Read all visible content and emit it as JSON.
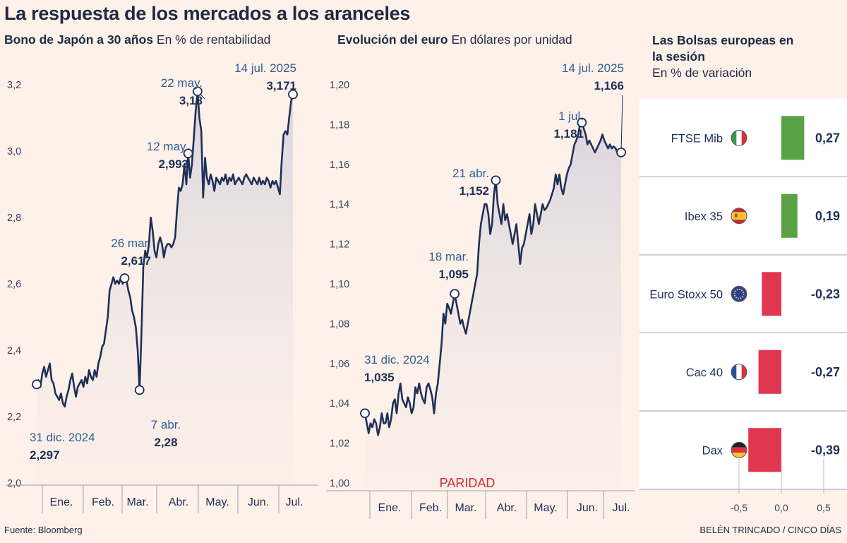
{
  "headline": "La respuesta de los mercados a los aranceles",
  "source": "Fuente: Bloomberg",
  "credit": "BELÉN TRINCADO / CINCO DÍAS",
  "colors": {
    "line": "#1f3057",
    "annotation_label": "#2f5f96",
    "positive": "#5aa246",
    "negative": "#e0364f",
    "paridad": "#d6293b",
    "background": "#fdf1e9",
    "axis_text": "#3a4560"
  },
  "chart_data": [
    {
      "type": "line",
      "title": "Bono de Japón a 30 años",
      "subtitle": "En % de rentabilidad",
      "ylim": [
        2.0,
        3.2
      ],
      "yticks": [
        "2,0",
        "2,2",
        "2,4",
        "2,6",
        "2,8",
        "3,0",
        "3,2"
      ],
      "ytick_values": [
        2.0,
        2.2,
        2.4,
        2.6,
        2.8,
        3.0,
        3.2
      ],
      "xticks": [
        "Ene.",
        "Feb.",
        "Mar.",
        "Abr.",
        "May.",
        "Jun.",
        "Jul."
      ],
      "x_end_index": 137,
      "values": [
        2.297,
        2.31,
        2.29,
        2.33,
        2.35,
        2.32,
        2.34,
        2.36,
        2.31,
        2.3,
        2.27,
        2.26,
        2.25,
        2.27,
        2.24,
        2.23,
        2.26,
        2.28,
        2.31,
        2.33,
        2.29,
        2.26,
        2.29,
        2.3,
        2.31,
        2.29,
        2.32,
        2.3,
        2.34,
        2.32,
        2.31,
        2.34,
        2.32,
        2.36,
        2.38,
        2.41,
        2.42,
        2.46,
        2.5,
        2.58,
        2.6,
        2.62,
        2.6,
        2.61,
        2.6,
        2.62,
        2.6,
        2.617,
        2.61,
        2.58,
        2.56,
        2.52,
        2.5,
        2.47,
        2.4,
        2.28,
        2.45,
        2.65,
        2.7,
        2.68,
        2.72,
        2.8,
        2.76,
        2.7,
        2.68,
        2.72,
        2.74,
        2.72,
        2.68,
        2.71,
        2.72,
        2.72,
        2.71,
        2.72,
        2.74,
        2.82,
        2.89,
        2.88,
        2.9,
        2.96,
        2.9,
        2.993,
        2.92,
        2.96,
        3.04,
        3.12,
        3.18,
        3.1,
        3.06,
        2.86,
        2.98,
        2.92,
        2.9,
        2.93,
        2.91,
        2.88,
        2.92,
        2.91,
        2.9,
        2.92,
        2.91,
        2.93,
        2.9,
        2.92,
        2.91,
        2.93,
        2.9,
        2.91,
        2.92,
        2.91,
        2.9,
        2.92,
        2.93,
        2.92,
        2.91,
        2.9,
        2.92,
        2.91,
        2.9,
        2.92,
        2.9,
        2.91,
        2.9,
        2.92,
        2.91,
        2.89,
        2.91,
        2.9,
        2.91,
        2.89,
        2.87,
        2.97,
        3.05,
        3.06,
        3.05,
        3.1,
        3.15,
        3.171
      ],
      "annotations": [
        {
          "date": "31 dic. 2024",
          "value": "2,297",
          "index": 0
        },
        {
          "date": "26 mar.",
          "value": "2,617",
          "index": 47
        },
        {
          "date": "7 abr.",
          "value": "2,28",
          "index": 55
        },
        {
          "date": "12 may.",
          "value": "2,993",
          "index": 81
        },
        {
          "date": "22 may.",
          "value": "3,18",
          "index": 86
        },
        {
          "date": "14 jul. 2025",
          "value": "3,171",
          "index": 137
        }
      ]
    },
    {
      "type": "line",
      "title": "Evolución del euro",
      "subtitle": "En dólares por unidad",
      "ylim": [
        1.0,
        1.2
      ],
      "yticks": [
        "1,00",
        "1,02",
        "1,04",
        "1,06",
        "1,08",
        "1,10",
        "1,12",
        "1,14",
        "1,16",
        "1,18",
        "1,20"
      ],
      "ytick_values": [
        1.0,
        1.02,
        1.04,
        1.06,
        1.08,
        1.1,
        1.12,
        1.14,
        1.16,
        1.18,
        1.2
      ],
      "xticks": [
        "Ene.",
        "Feb.",
        "Mar.",
        "Abr.",
        "May.",
        "Jun.",
        "Jul."
      ],
      "x_end_index": 137,
      "reference_label": "PARIDAD",
      "values": [
        1.035,
        1.03,
        1.025,
        1.03,
        1.028,
        1.032,
        1.03,
        1.024,
        1.028,
        1.035,
        1.03,
        1.03,
        1.035,
        1.028,
        1.032,
        1.04,
        1.042,
        1.035,
        1.045,
        1.05,
        1.042,
        1.04,
        1.038,
        1.043,
        1.04,
        1.035,
        1.038,
        1.048,
        1.045,
        1.05,
        1.045,
        1.042,
        1.04,
        1.048,
        1.05,
        1.047,
        1.043,
        1.035,
        1.045,
        1.05,
        1.06,
        1.07,
        1.085,
        1.08,
        1.09,
        1.088,
        1.085,
        1.09,
        1.095,
        1.09,
        1.085,
        1.08,
        1.082,
        1.078,
        1.075,
        1.08,
        1.085,
        1.09,
        1.095,
        1.1,
        1.105,
        1.12,
        1.13,
        1.135,
        1.14,
        1.14,
        1.135,
        1.125,
        1.13,
        1.145,
        1.152,
        1.14,
        1.135,
        1.13,
        1.14,
        1.132,
        1.135,
        1.13,
        1.125,
        1.12,
        1.125,
        1.13,
        1.12,
        1.11,
        1.118,
        1.12,
        1.125,
        1.13,
        1.135,
        1.125,
        1.13,
        1.14,
        1.135,
        1.13,
        1.135,
        1.14,
        1.137,
        1.138,
        1.14,
        1.142,
        1.145,
        1.148,
        1.155,
        1.15,
        1.155,
        1.148,
        1.145,
        1.15,
        1.155,
        1.158,
        1.16,
        1.165,
        1.17,
        1.172,
        1.175,
        1.18,
        1.181,
        1.178,
        1.175,
        1.17,
        1.172,
        1.17,
        1.168,
        1.166,
        1.168,
        1.17,
        1.172,
        1.175,
        1.172,
        1.17,
        1.168,
        1.17,
        1.168,
        1.169,
        1.168,
        1.166,
        1.166,
        1.166
      ],
      "annotations": [
        {
          "date": "31 dic. 2024",
          "value": "1,035",
          "index": 0
        },
        {
          "date": "18 mar.",
          "value": "1,095",
          "index": 48
        },
        {
          "date": "21 abr.",
          "value": "1,152",
          "index": 70
        },
        {
          "date": "1 jul.",
          "value": "1,181",
          "index": 116
        },
        {
          "date": "14 jul. 2025",
          "value": "1,166",
          "index": 137
        }
      ]
    },
    {
      "type": "bar",
      "orientation": "horizontal",
      "title": "Las Bolsas europeas en la sesión",
      "subtitle": "En % de variación",
      "xlim": [
        -0.5,
        0.5
      ],
      "xticks": [
        "-0,5",
        "0,0",
        "0,5"
      ],
      "xtick_values": [
        -0.5,
        0.0,
        0.5
      ],
      "categories": [
        "FTSE Mib",
        "Ibex 35",
        "Euro Stoxx 50",
        "Cac 40",
        "Dax"
      ],
      "flags": [
        "italy-flag",
        "spain-flag",
        "eu-flag",
        "france-flag",
        "germany-flag"
      ],
      "values": [
        0.27,
        0.19,
        -0.23,
        -0.27,
        -0.39
      ],
      "value_labels": [
        "0,27",
        "0,19",
        "-0,23",
        "-0,27",
        "-0,39"
      ]
    }
  ]
}
